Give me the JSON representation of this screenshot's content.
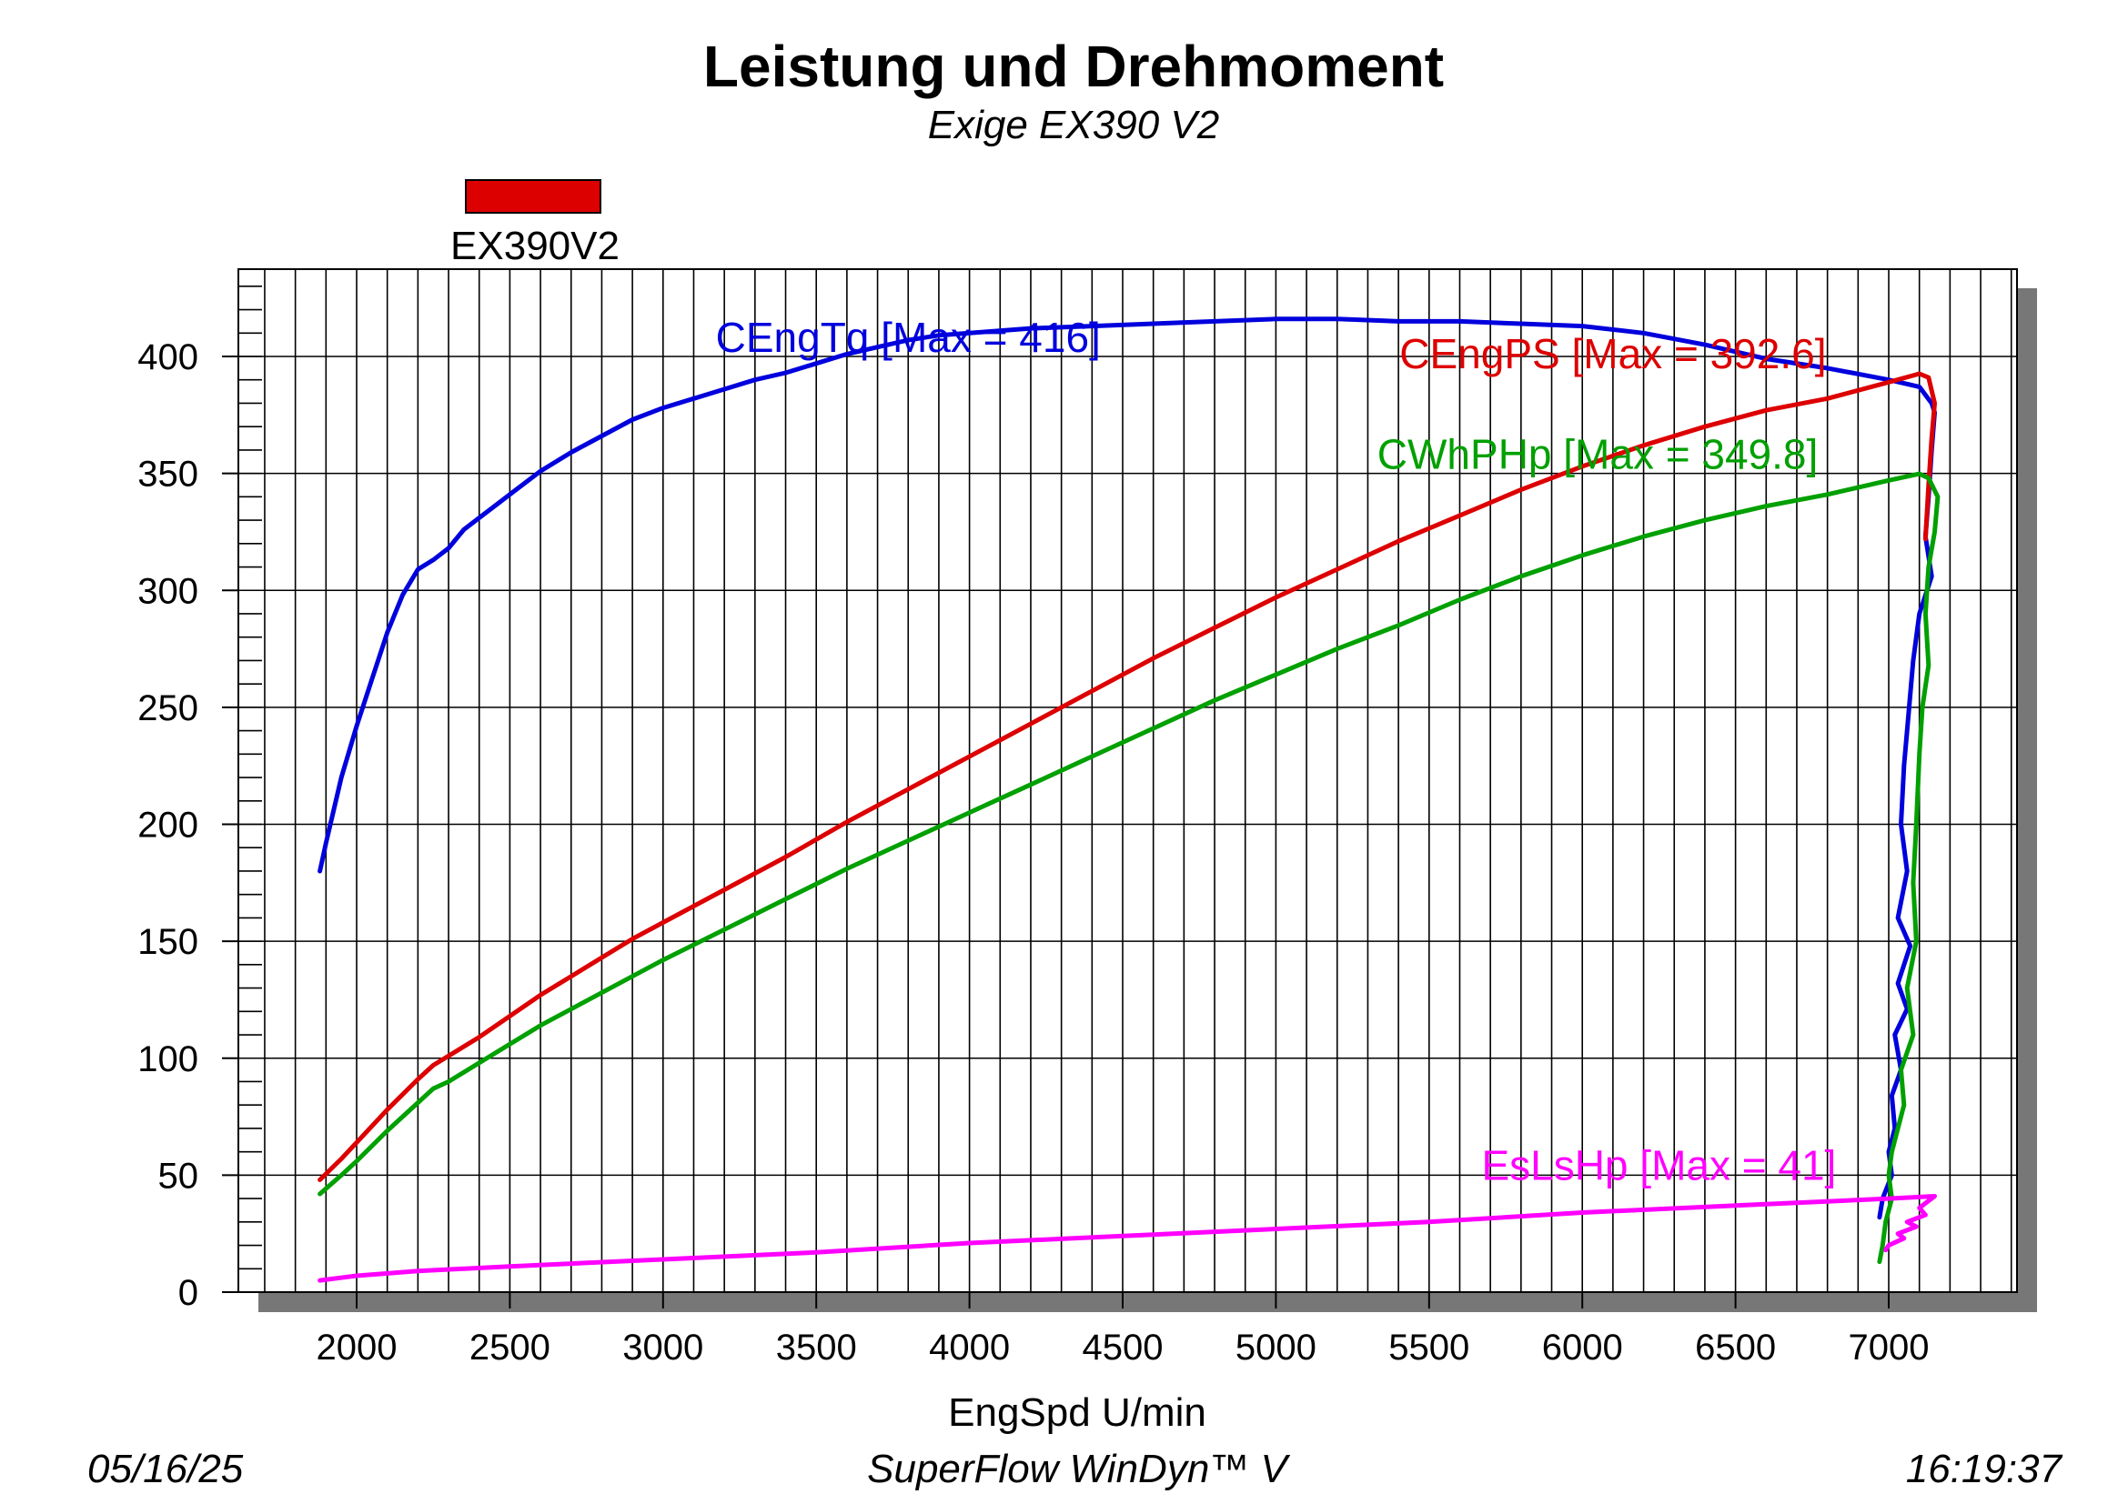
{
  "chart_data": {
    "type": "line",
    "title": "Leistung und Drehmoment",
    "subtitle": "Exige EX390 V2",
    "xlabel": "EngSpd U/min",
    "ylabel": "",
    "xlim": [
      1600,
      7400
    ],
    "ylim": [
      0,
      440
    ],
    "x_ticks": [
      2000,
      2500,
      3000,
      3500,
      4000,
      4500,
      5000,
      5500,
      6000,
      6500,
      7000
    ],
    "y_ticks": [
      0,
      50,
      100,
      150,
      200,
      250,
      300,
      350,
      400
    ],
    "grid": true,
    "legend": {
      "position": "top-left",
      "entries": [
        {
          "name": "EX390V2",
          "color": "#dd0000"
        }
      ]
    },
    "series": [
      {
        "name": "CEngTq",
        "label": "CEngTq [Max = 416]",
        "color": "#0000dd",
        "points": [
          [
            1880,
            180
          ],
          [
            1900,
            192
          ],
          [
            1950,
            220
          ],
          [
            2000,
            242
          ],
          [
            2050,
            262
          ],
          [
            2100,
            282
          ],
          [
            2150,
            298
          ],
          [
            2200,
            309
          ],
          [
            2250,
            313
          ],
          [
            2300,
            318
          ],
          [
            2350,
            326
          ],
          [
            2400,
            331
          ],
          [
            2450,
            336
          ],
          [
            2500,
            341
          ],
          [
            2600,
            351
          ],
          [
            2700,
            359
          ],
          [
            2800,
            366
          ],
          [
            2900,
            373
          ],
          [
            3000,
            378
          ],
          [
            3100,
            382
          ],
          [
            3200,
            386
          ],
          [
            3300,
            390
          ],
          [
            3400,
            393
          ],
          [
            3500,
            397
          ],
          [
            3600,
            401
          ],
          [
            3700,
            404
          ],
          [
            3800,
            407
          ],
          [
            3900,
            409
          ],
          [
            4000,
            410
          ],
          [
            4200,
            412
          ],
          [
            4400,
            413
          ],
          [
            4600,
            414
          ],
          [
            4800,
            415
          ],
          [
            5000,
            416
          ],
          [
            5200,
            416
          ],
          [
            5400,
            415
          ],
          [
            5600,
            415
          ],
          [
            5800,
            414
          ],
          [
            6000,
            413
          ],
          [
            6200,
            410
          ],
          [
            6400,
            405
          ],
          [
            6600,
            399
          ],
          [
            6800,
            395
          ],
          [
            7000,
            390
          ],
          [
            7100,
            387
          ],
          [
            7140,
            380
          ],
          [
            7150,
            376
          ],
          [
            7140,
            360
          ],
          [
            7130,
            340
          ],
          [
            7120,
            323
          ],
          [
            7140,
            306
          ],
          [
            7100,
            290
          ],
          [
            7080,
            270
          ],
          [
            7060,
            240
          ],
          [
            7050,
            225
          ],
          [
            7040,
            200
          ],
          [
            7060,
            180
          ],
          [
            7030,
            160
          ],
          [
            7070,
            148
          ],
          [
            7030,
            132
          ],
          [
            7060,
            121
          ],
          [
            7020,
            110
          ],
          [
            7040,
            95
          ],
          [
            7010,
            84
          ],
          [
            7020,
            70
          ],
          [
            7000,
            60
          ],
          [
            7010,
            50
          ],
          [
            6980,
            40
          ],
          [
            6970,
            32
          ]
        ]
      },
      {
        "name": "CEngPS",
        "label": "CEngPS [Max = 392.6]",
        "color": "#dd0000",
        "points": [
          [
            1880,
            48
          ],
          [
            1950,
            57
          ],
          [
            2000,
            64
          ],
          [
            2100,
            78
          ],
          [
            2200,
            91
          ],
          [
            2250,
            97
          ],
          [
            2300,
            101
          ],
          [
            2400,
            109
          ],
          [
            2500,
            118
          ],
          [
            2600,
            127
          ],
          [
            2700,
            135
          ],
          [
            2800,
            143
          ],
          [
            2900,
            151
          ],
          [
            3000,
            158
          ],
          [
            3200,
            172
          ],
          [
            3400,
            186
          ],
          [
            3600,
            201
          ],
          [
            3800,
            215
          ],
          [
            4000,
            229
          ],
          [
            4200,
            243
          ],
          [
            4400,
            257
          ],
          [
            4600,
            271
          ],
          [
            4800,
            284
          ],
          [
            5000,
            297
          ],
          [
            5200,
            309
          ],
          [
            5400,
            321
          ],
          [
            5600,
            332
          ],
          [
            5800,
            343
          ],
          [
            6000,
            353
          ],
          [
            6200,
            362
          ],
          [
            6400,
            370
          ],
          [
            6600,
            377
          ],
          [
            6800,
            382
          ],
          [
            7000,
            389
          ],
          [
            7100,
            392.6
          ],
          [
            7130,
            391
          ],
          [
            7150,
            380
          ],
          [
            7140,
            365
          ],
          [
            7130,
            345
          ],
          [
            7120,
            322
          ]
        ]
      },
      {
        "name": "CWhPHp",
        "label": "CWhPHp [Max = 349.8]",
        "color": "#00a000",
        "points": [
          [
            1880,
            42
          ],
          [
            1950,
            50
          ],
          [
            2000,
            56
          ],
          [
            2100,
            69
          ],
          [
            2200,
            81
          ],
          [
            2250,
            87
          ],
          [
            2300,
            90
          ],
          [
            2400,
            98
          ],
          [
            2500,
            106
          ],
          [
            2600,
            114
          ],
          [
            2700,
            121
          ],
          [
            2800,
            128
          ],
          [
            2900,
            135
          ],
          [
            3000,
            142
          ],
          [
            3200,
            155
          ],
          [
            3400,
            168
          ],
          [
            3600,
            181
          ],
          [
            3800,
            193
          ],
          [
            4000,
            205
          ],
          [
            4200,
            217
          ],
          [
            4400,
            229
          ],
          [
            4600,
            241
          ],
          [
            4800,
            253
          ],
          [
            5000,
            264
          ],
          [
            5200,
            275
          ],
          [
            5400,
            285
          ],
          [
            5600,
            296
          ],
          [
            5800,
            306
          ],
          [
            6000,
            315
          ],
          [
            6200,
            323
          ],
          [
            6400,
            330
          ],
          [
            6600,
            336
          ],
          [
            6800,
            341
          ],
          [
            7000,
            347
          ],
          [
            7100,
            349.8
          ],
          [
            7130,
            348
          ],
          [
            7160,
            340
          ],
          [
            7150,
            325
          ],
          [
            7130,
            310
          ],
          [
            7120,
            290
          ],
          [
            7130,
            268
          ],
          [
            7110,
            250
          ],
          [
            7100,
            230
          ],
          [
            7090,
            200
          ],
          [
            7080,
            175
          ],
          [
            7090,
            150
          ],
          [
            7060,
            130
          ],
          [
            7080,
            110
          ],
          [
            7040,
            95
          ],
          [
            7050,
            80
          ],
          [
            7030,
            70
          ],
          [
            7010,
            60
          ],
          [
            7000,
            50
          ],
          [
            7010,
            40
          ],
          [
            6990,
            30
          ],
          [
            6980,
            20
          ],
          [
            6970,
            13
          ]
        ]
      },
      {
        "name": "EsLsHp",
        "label": "EsLsHp [Max = 41]",
        "color": "#ff00ff",
        "points": [
          [
            1880,
            5
          ],
          [
            2000,
            7
          ],
          [
            2200,
            9
          ],
          [
            2500,
            11
          ],
          [
            3000,
            14
          ],
          [
            3500,
            17
          ],
          [
            4000,
            21
          ],
          [
            4500,
            24
          ],
          [
            5000,
            27
          ],
          [
            5500,
            30
          ],
          [
            6000,
            34
          ],
          [
            6500,
            37
          ],
          [
            7000,
            40
          ],
          [
            7150,
            41
          ],
          [
            7100,
            36
          ],
          [
            7120,
            33
          ],
          [
            7060,
            30
          ],
          [
            7090,
            28
          ],
          [
            7030,
            25
          ],
          [
            7050,
            23
          ],
          [
            7000,
            20
          ],
          [
            6990,
            18
          ]
        ]
      }
    ]
  },
  "footer": {
    "date": "05/16/25",
    "software": "SuperFlow WinDyn™ V",
    "time": "16:19:37"
  }
}
